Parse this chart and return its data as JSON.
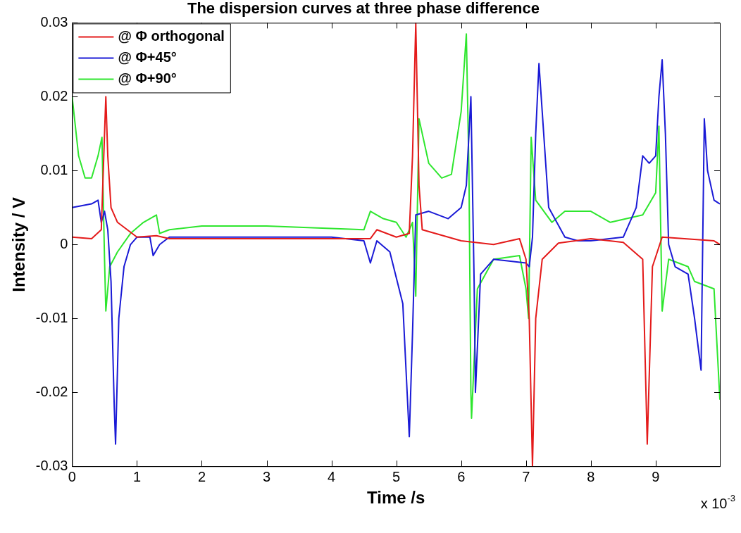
{
  "chart_data": {
    "type": "line",
    "title": "The dispersion curves at three phase difference",
    "xlabel": "Time /s",
    "ylabel": "Intensity / V",
    "xlim": [
      0,
      9.99
    ],
    "xticks": [
      0,
      1,
      2,
      3,
      4,
      5,
      6,
      7,
      8,
      9
    ],
    "ylim": [
      -0.03,
      0.03
    ],
    "yticks": [
      -0.03,
      -0.02,
      -0.01,
      0,
      0.01,
      0.02,
      0.03
    ],
    "grid": false,
    "legend": "top left",
    "marker": "none",
    "line_style": "solid",
    "annotations": [
      "x 10$^{-3}$"
    ],
    "series": [
      {
        "name": "@ Φ orthogonal",
        "color": "#e41a1a",
        "x": [
          0,
          0.3,
          0.45,
          0.5,
          0.52,
          0.55,
          0.6,
          0.7,
          0.85,
          1.0,
          1.3,
          1.5,
          2.5,
          3.5,
          4.6,
          4.7,
          5.0,
          5.2,
          5.25,
          5.3,
          5.35,
          5.4,
          6.0,
          6.5,
          6.9,
          7.0,
          7.05,
          7.1,
          7.15,
          7.25,
          7.5,
          8.0,
          8.5,
          8.8,
          8.87,
          8.95,
          9.1,
          9.9,
          9.99
        ],
        "values": [
          0.001,
          0.0008,
          0.002,
          0.015,
          0.02,
          0.012,
          0.005,
          0.003,
          0.002,
          0.001,
          0.0012,
          0.0008,
          0.0008,
          0.0008,
          0.0008,
          0.002,
          0.001,
          0.0015,
          0.012,
          0.03,
          0.008,
          0.002,
          0.0005,
          0,
          0.0008,
          -0.002,
          -0.01,
          -0.03,
          -0.01,
          -0.002,
          0.0002,
          0.0008,
          0.0003,
          -0.002,
          -0.027,
          -0.003,
          0.001,
          0.0005,
          0
        ]
      },
      {
        "name": "@ Φ+45°",
        "color": "#1a1ad6",
        "x": [
          0,
          0.3,
          0.4,
          0.45,
          0.5,
          0.55,
          0.6,
          0.65,
          0.67,
          0.72,
          0.8,
          0.9,
          1.0,
          1.2,
          1.25,
          1.35,
          1.5,
          4.0,
          4.5,
          4.6,
          4.7,
          4.9,
          5.1,
          5.2,
          5.25,
          5.3,
          5.5,
          5.8,
          6.0,
          6.08,
          6.15,
          6.2,
          6.22,
          6.3,
          6.5,
          7.0,
          7.05,
          7.1,
          7.15,
          7.2,
          7.25,
          7.35,
          7.6,
          7.8,
          8.0,
          8.5,
          8.7,
          8.8,
          8.9,
          9.0,
          9.05,
          9.1,
          9.15,
          9.2,
          9.3,
          9.5,
          9.6,
          9.7,
          9.75,
          9.8,
          9.9,
          9.99
        ],
        "values": [
          0.005,
          0.0055,
          0.006,
          0.003,
          0.0045,
          0.002,
          -0.005,
          -0.022,
          -0.027,
          -0.01,
          -0.003,
          0,
          0.001,
          0.001,
          -0.0015,
          0,
          0.001,
          0.001,
          0.0005,
          -0.0025,
          0.0005,
          -0.001,
          -0.008,
          -0.026,
          -0.012,
          0.004,
          0.0045,
          0.0035,
          0.005,
          0.008,
          0.02,
          -0.005,
          -0.02,
          -0.004,
          -0.002,
          -0.0025,
          -0.003,
          0.001,
          0.015,
          0.0245,
          0.018,
          0.005,
          0.001,
          0.0005,
          0.0005,
          0.001,
          0.005,
          0.012,
          0.011,
          0.012,
          0.02,
          0.025,
          0.015,
          0,
          -0.003,
          -0.004,
          -0.01,
          -0.017,
          0.017,
          0.01,
          0.006,
          0.0055
        ]
      },
      {
        "name": "@ Φ+90°",
        "color": "#2ee62e",
        "x": [
          0,
          0.1,
          0.2,
          0.3,
          0.4,
          0.46,
          0.5,
          0.52,
          0.58,
          0.7,
          0.9,
          1.1,
          1.3,
          1.35,
          1.5,
          2.0,
          3.0,
          4.5,
          4.6,
          4.8,
          5.0,
          5.15,
          5.25,
          5.3,
          5.35,
          5.5,
          5.7,
          5.85,
          6.0,
          6.08,
          6.12,
          6.15,
          6.16,
          6.25,
          6.5,
          6.9,
          7.0,
          7.04,
          7.08,
          7.15,
          7.4,
          7.6,
          8.0,
          8.3,
          8.8,
          9.0,
          9.05,
          9.1,
          9.2,
          9.5,
          9.6,
          9.9,
          9.99
        ],
        "values": [
          0.02,
          0.012,
          0.009,
          0.009,
          0.012,
          0.0145,
          -0.002,
          -0.009,
          -0.003,
          -0.001,
          0.0015,
          0.003,
          0.004,
          0.0015,
          0.002,
          0.0025,
          0.0025,
          0.002,
          0.0045,
          0.0035,
          0.003,
          0.001,
          0.003,
          -0.007,
          0.017,
          0.011,
          0.009,
          0.0095,
          0.018,
          0.0285,
          0.01,
          -0.02,
          -0.0235,
          -0.006,
          -0.002,
          -0.0015,
          -0.006,
          -0.01,
          0.0145,
          0.006,
          0.003,
          0.0045,
          0.0045,
          0.003,
          0.004,
          0.007,
          0.016,
          -0.009,
          -0.002,
          -0.003,
          -0.005,
          -0.006,
          -0.021
        ]
      }
    ]
  }
}
